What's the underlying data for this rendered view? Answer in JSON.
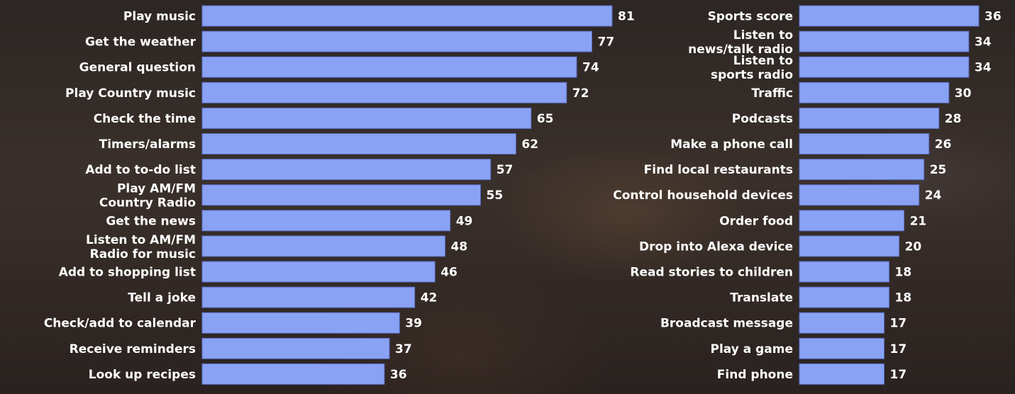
{
  "colors": {
    "bar": "#8aa2f4",
    "text": "#ffffff"
  },
  "chart_data": [
    {
      "type": "bar",
      "orientation": "horizontal",
      "categories": [
        "Play music",
        "Get the weather",
        "General question",
        "Play Country music",
        "Check the time",
        "Timers/alarms",
        "Add to to-do list",
        [
          "Play AM/FM",
          "Country Radio"
        ],
        "Get  the news",
        [
          "Listen to AM/FM",
          "Radio for music"
        ],
        "Add to shopping list",
        "Tell a joke",
        "Check/add to calendar",
        "Receive reminders",
        "Look up recipes"
      ],
      "values": [
        81,
        77,
        74,
        72,
        65,
        62,
        57,
        55,
        49,
        48,
        46,
        42,
        39,
        37,
        36
      ],
      "xlim": [
        0,
        81
      ]
    },
    {
      "type": "bar",
      "orientation": "horizontal",
      "categories": [
        "Sports score",
        [
          "Listen to",
          "news/talk radio"
        ],
        [
          "Listen to",
          "sports radio"
        ],
        "Traffic",
        "Podcasts",
        "Make a phone call",
        "Find local restaurants",
        "Control household devices",
        "Order food",
        "Drop into Alexa device",
        "Read stories to children",
        "Translate",
        "Broadcast message",
        "Play a game",
        "Find phone"
      ],
      "values": [
        36,
        34,
        34,
        30,
        28,
        26,
        25,
        24,
        21,
        20,
        18,
        18,
        17,
        17,
        17
      ],
      "xlim": [
        0,
        36
      ]
    }
  ]
}
